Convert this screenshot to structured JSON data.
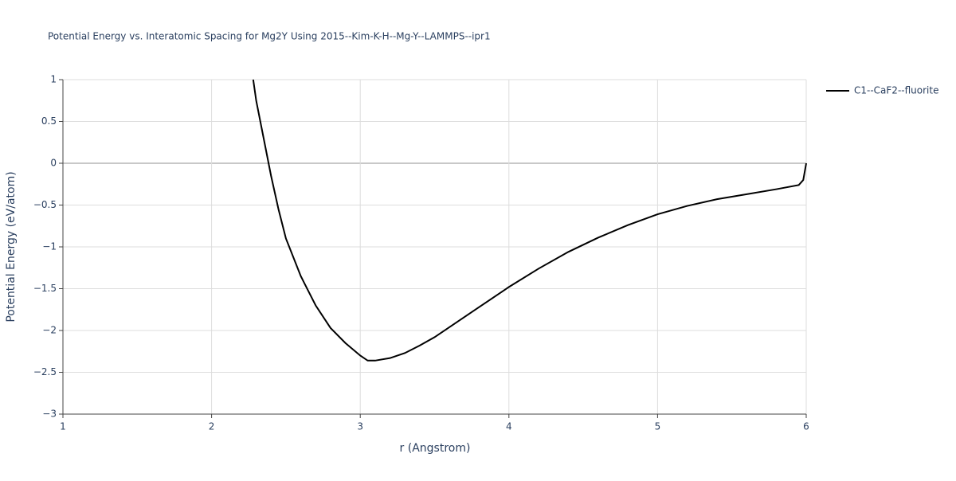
{
  "chart_data": {
    "type": "line",
    "title": "Potential Energy vs. Interatomic Spacing for Mg2Y Using 2015--Kim-K-H--Mg-Y--LAMMPS--ipr1",
    "x_label": "r (Angstrom)",
    "y_label": "Potential Energy (eV/atom)",
    "x": [
      2.28,
      2.3,
      2.35,
      2.4,
      2.45,
      2.5,
      2.6,
      2.7,
      2.8,
      2.9,
      3.0,
      3.05,
      3.1,
      3.2,
      3.3,
      3.4,
      3.5,
      3.6,
      3.8,
      4.0,
      4.2,
      4.4,
      4.6,
      4.8,
      5.0,
      5.2,
      5.4,
      5.6,
      5.8,
      5.95,
      5.98,
      6.0
    ],
    "series": [
      {
        "name": "C1--CaF2--fluorite",
        "color": "#000000",
        "values": [
          1.0,
          0.75,
          0.3,
          -0.15,
          -0.55,
          -0.9,
          -1.35,
          -1.7,
          -1.97,
          -2.15,
          -2.3,
          -2.36,
          -2.36,
          -2.33,
          -2.27,
          -2.18,
          -2.08,
          -1.96,
          -1.72,
          -1.48,
          -1.26,
          -1.06,
          -0.89,
          -0.74,
          -0.61,
          -0.51,
          -0.43,
          -0.37,
          -0.31,
          -0.26,
          -0.2,
          0.0
        ]
      }
    ],
    "xlim": [
      1,
      6
    ],
    "xticks": [
      1,
      2,
      3,
      4,
      5,
      6
    ],
    "ylim": [
      -3,
      1
    ],
    "yticks": [
      {
        "value": -3,
        "label": "−3"
      },
      {
        "value": -2.5,
        "label": "−2.5"
      },
      {
        "value": -2,
        "label": "−2"
      },
      {
        "value": -1.5,
        "label": "−1.5"
      },
      {
        "value": -1,
        "label": "−1"
      },
      {
        "value": -0.5,
        "label": "−0.5"
      },
      0,
      0.5,
      1
    ],
    "grid": true,
    "legend": "right"
  }
}
